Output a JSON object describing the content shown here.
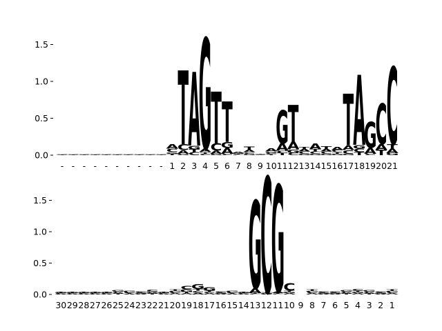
{
  "colors": {
    "A": "#008000",
    "C": "#0000ff",
    "G": "#ffa500",
    "T": "#ff0000",
    "axis": "#000000"
  },
  "chart_data": [
    {
      "type": "sequence-logo",
      "panel": "top",
      "title": "",
      "xlabel": "",
      "ylabel": "",
      "ylim": [
        0,
        1.6
      ],
      "yticks": [
        0.0,
        0.5,
        1.0,
        1.5
      ],
      "ytick_labels": [
        "0.0",
        "0.5",
        "1.0",
        "1.5"
      ],
      "xtick_labels": [
        "-",
        "-",
        "-",
        "-",
        "-",
        "-",
        "-",
        "-",
        "-",
        "-",
        "1",
        "2",
        "3",
        "4",
        "5",
        "6",
        "7",
        "8",
        "9",
        "10",
        "11",
        "12",
        "13",
        "14",
        "15",
        "16",
        "17",
        "18",
        "19",
        "20",
        "21"
      ],
      "positions": [
        {
          "T": 0.003,
          "A": 0.003,
          "C": 0.003,
          "G": 0.003
        },
        {
          "T": 0.003,
          "A": 0.003,
          "C": 0.003,
          "G": 0.003
        },
        {
          "T": 0.003,
          "A": 0.003,
          "C": 0.003,
          "G": 0.003
        },
        {
          "T": 0.003,
          "A": 0.003,
          "C": 0.003,
          "G": 0.003
        },
        {
          "T": 0.003,
          "A": 0.003,
          "C": 0.003,
          "G": 0.003
        },
        {
          "T": 0.003,
          "A": 0.003,
          "C": 0.003,
          "G": 0.003
        },
        {
          "T": 0.003,
          "A": 0.003,
          "C": 0.003,
          "G": 0.003
        },
        {
          "T": 0.003,
          "A": 0.003,
          "C": 0.003,
          "G": 0.003
        },
        {
          "T": 0.003,
          "A": 0.003,
          "C": 0.003,
          "G": 0.003
        },
        {
          "T": 0.003,
          "A": 0.003,
          "C": 0.003,
          "G": 0.003
        },
        {
          "T": 0.02,
          "G": 0.02,
          "C": 0.05,
          "A": 0.06
        },
        {
          "G": 0.02,
          "T": 1.0,
          "A": 0.05,
          "C": 0.08
        },
        {
          "C": 0.04,
          "A": 1.0,
          "T": 0.04,
          "G": 0.05
        },
        {
          "C": 0.02,
          "T": 0.02,
          "A": 0.05,
          "G": 1.5
        },
        {
          "G": 0.02,
          "A": 0.04,
          "C": 0.1,
          "T": 0.7
        },
        {
          "C": 0.02,
          "A": 0.08,
          "G": 0.08,
          "T": 0.55
        },
        {
          "A": 0.02,
          "C": 0.01,
          "T": 0.01,
          "G": 0.01
        },
        {
          "G": 0.02,
          "C": 0.02,
          "A": 0.03,
          "T": 0.05
        },
        {
          "A": 0.005,
          "C": 0.005,
          "G": 0.005,
          "T": 0.005
        },
        {
          "C": 0.02,
          "G": 0.02,
          "T": 0.01,
          "A": 0.04
        },
        {
          "T": 0.03,
          "C": 0.03,
          "A": 0.1,
          "G": 0.45
        },
        {
          "C": 0.03,
          "G": 0.05,
          "A": 0.1,
          "T": 0.5
        },
        {
          "C": 0.03,
          "G": 0.02,
          "A": 0.03,
          "T": 0.03
        },
        {
          "C": 0.03,
          "T": 0.03,
          "A": 0.08,
          "G": 0.02
        },
        {
          "C": 0.03,
          "A": 0.03,
          "T": 0.04,
          "G": 0.02
        },
        {
          "C": 0.03,
          "G": 0.02,
          "T": 0.02,
          "A": 0.04
        },
        {
          "G": 0.02,
          "A": 0.06,
          "C": 0.05,
          "T": 0.7
        },
        {
          "T": 0.04,
          "C": 0.05,
          "G": 0.05,
          "A": 0.95
        },
        {
          "C": 0.02,
          "A": 0.08,
          "G": 0.35
        },
        {
          "A": 0.08,
          "C": 0.55,
          "T": 0.07
        },
        {
          "G": 0.03,
          "A": 0.06,
          "T": 0.06,
          "C": 1.05
        }
      ]
    },
    {
      "type": "sequence-logo",
      "panel": "bottom",
      "title": "",
      "xlabel": "",
      "ylabel": "",
      "ylim": [
        0,
        1.8
      ],
      "yticks": [
        0.0,
        0.5,
        1.0,
        1.5
      ],
      "ytick_labels": [
        "0.0",
        "0.5",
        "1.0",
        "1.5"
      ],
      "xtick_labels": [
        "30",
        "29",
        "28",
        "27",
        "26",
        "25",
        "24",
        "23",
        "22",
        "21",
        "20",
        "19",
        "18",
        "17",
        "16",
        "15",
        "14",
        "13",
        "12",
        "11",
        "10",
        "9",
        "8",
        "7",
        "6",
        "5",
        "4",
        "3",
        "2",
        "1"
      ],
      "positions": [
        {
          "A": 0.01,
          "C": 0.01,
          "G": 0.01,
          "T": 0.01
        },
        {
          "A": 0.01,
          "C": 0.01,
          "G": 0.01,
          "T": 0.01
        },
        {
          "A": 0.01,
          "C": 0.01,
          "G": 0.01,
          "T": 0.01
        },
        {
          "A": 0.01,
          "C": 0.01,
          "G": 0.01,
          "T": 0.01
        },
        {
          "A": 0.01,
          "C": 0.01,
          "G": 0.01,
          "T": 0.01
        },
        {
          "A": 0.02,
          "C": 0.02,
          "G": 0.02,
          "T": 0.01
        },
        {
          "A": 0.01,
          "C": 0.02,
          "G": 0.02,
          "T": 0.01
        },
        {
          "A": 0.01,
          "C": 0.02,
          "G": 0.01,
          "T": 0.01
        },
        {
          "A": 0.02,
          "C": 0.03,
          "G": 0.02,
          "T": 0.01
        },
        {
          "A": 0.01,
          "C": 0.01,
          "G": 0.01,
          "T": 0.01
        },
        {
          "A": 0.02,
          "C": 0.02,
          "G": 0.02,
          "T": 0.02
        },
        {
          "A": 0.02,
          "C": 0.06,
          "G": 0.04,
          "T": 0.02
        },
        {
          "A": 0.03,
          "C": 0.03,
          "G": 0.08,
          "T": 0.03
        },
        {
          "A": 0.02,
          "C": 0.02,
          "G": 0.06,
          "T": 0.02
        },
        {
          "A": 0.01,
          "C": 0.02,
          "G": 0.01,
          "T": 0.01
        },
        {
          "A": 0.01,
          "C": 0.02,
          "G": 0.02,
          "T": 0.01
        },
        {
          "A": 0.01,
          "C": 0.01,
          "G": 0.01,
          "T": 0.01
        },
        {
          "A": 0.08,
          "C": 0.01,
          "G": 1.4,
          "T": 0.01
        },
        {
          "A": 0.01,
          "C": 1.85,
          "G": 0.01,
          "T": 0.01
        },
        {
          "A": 0.03,
          "C": 0.01,
          "G": 1.7,
          "T": 0.01
        },
        {
          "A": 0.02,
          "C": 0.12,
          "G": 0.02,
          "T": 0.02
        },
        {
          "A": 0.0,
          "C": 0.0,
          "G": 0.0,
          "T": 0.0
        },
        {
          "A": 0.02,
          "C": 0.02,
          "G": 0.02,
          "T": 0.02
        },
        {
          "A": 0.01,
          "C": 0.02,
          "G": 0.01,
          "T": 0.01
        },
        {
          "A": 0.01,
          "C": 0.02,
          "G": 0.01,
          "T": 0.01
        },
        {
          "A": 0.02,
          "C": 0.02,
          "G": 0.02,
          "T": 0.01
        },
        {
          "A": 0.02,
          "C": 0.03,
          "G": 0.02,
          "T": 0.02
        },
        {
          "A": 0.02,
          "C": 0.02,
          "G": 0.02,
          "T": 0.01
        },
        {
          "A": 0.01,
          "C": 0.02,
          "G": 0.01,
          "T": 0.01
        },
        {
          "A": 0.02,
          "C": 0.02,
          "G": 0.02,
          "T": 0.02
        }
      ]
    }
  ]
}
